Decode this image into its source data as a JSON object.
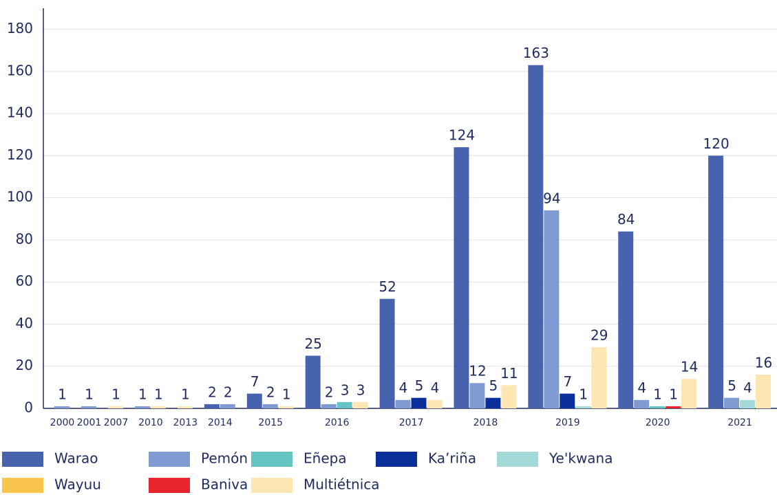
{
  "chart_data": {
    "type": "bar",
    "categories": [
      "2000",
      "2001",
      "2007",
      "2010",
      "2013",
      "2014",
      "2015",
      "2016",
      "2017",
      "2018",
      "2019",
      "2020",
      "2021"
    ],
    "series": [
      {
        "name": "Warao",
        "color": "#4863ae",
        "values": [
          null,
          null,
          null,
          null,
          null,
          2,
          7,
          25,
          52,
          124,
          163,
          84,
          120
        ]
      },
      {
        "name": "Pemón",
        "color": "#7f9bd2",
        "values": [
          1,
          1,
          null,
          1,
          null,
          2,
          2,
          2,
          4,
          12,
          94,
          4,
          5
        ]
      },
      {
        "name": "Eñepa",
        "color": "#64c4c2",
        "values": [
          null,
          null,
          null,
          null,
          null,
          null,
          null,
          3,
          null,
          null,
          null,
          1,
          null
        ]
      },
      {
        "name": "Ka’riña",
        "color": "#0a2f9b",
        "values": [
          null,
          null,
          null,
          null,
          null,
          null,
          null,
          null,
          5,
          5,
          7,
          null,
          null
        ]
      },
      {
        "name": "Ye'kwana",
        "color": "#a3d9d8",
        "values": [
          null,
          null,
          null,
          null,
          null,
          null,
          null,
          null,
          null,
          null,
          1,
          null,
          4
        ]
      },
      {
        "name": "Wayuu",
        "color": "#fbc54d",
        "values": [
          null,
          null,
          null,
          null,
          null,
          null,
          null,
          null,
          null,
          null,
          null,
          null,
          null
        ]
      },
      {
        "name": "Baniva",
        "color": "#e8232e",
        "values": [
          null,
          null,
          null,
          null,
          null,
          null,
          null,
          null,
          null,
          null,
          null,
          1,
          null
        ]
      },
      {
        "name": "Multiétnica",
        "color": "#fde6b2",
        "values": [
          null,
          null,
          1,
          1,
          1,
          null,
          1,
          3,
          4,
          11,
          29,
          14,
          16
        ]
      }
    ],
    "ylim": [
      0,
      190
    ],
    "yticks": [
      0,
      20,
      40,
      60,
      80,
      100,
      120,
      140,
      160,
      180
    ],
    "grid": true
  }
}
